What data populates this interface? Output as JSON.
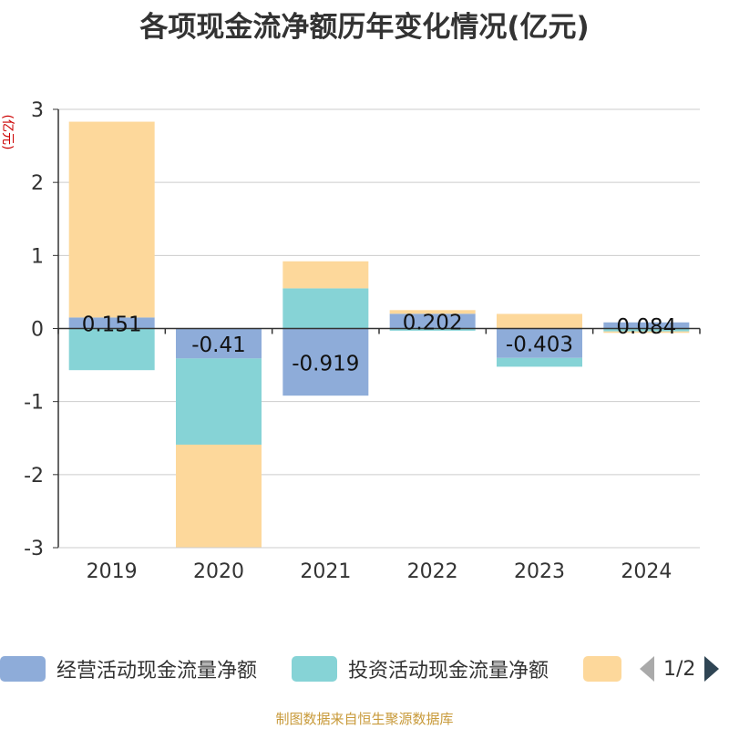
{
  "title": "各项现金流净额历年变化情况(亿元)",
  "source": "制图数据来自恒生聚源数据库",
  "pager": {
    "text": "1/2"
  },
  "colors": {
    "operating": "#8eacd9",
    "investing": "#86d3d6",
    "financing": "#fdd89b",
    "ylabel": "#cc0000",
    "axis": "#333333",
    "grid": "#cccccc"
  },
  "chart_data": {
    "type": "bar",
    "stacked": true,
    "title": "各项现金流净额历年变化情况(亿元)",
    "ylabel": "(亿元)",
    "xlabel": "",
    "categories": [
      "2019",
      "2020",
      "2021",
      "2022",
      "2023",
      "2024"
    ],
    "ylim": [
      -3,
      3
    ],
    "yticks": [
      3,
      2,
      1,
      0,
      -1,
      -2,
      -3
    ],
    "grid": true,
    "legend_position": "bottom",
    "series": [
      {
        "name": "经营活动现金流量净额",
        "color": "#8eacd9",
        "values": [
          0.151,
          -0.41,
          -0.919,
          0.202,
          -0.403,
          0.084
        ],
        "labels": [
          "0.151",
          "-0.41",
          "-0.919",
          "0.202",
          "-0.403",
          "0.084"
        ]
      },
      {
        "name": "投资活动现金流量净额",
        "color": "#86d3d6",
        "values": [
          -0.57,
          -1.18,
          0.55,
          -0.03,
          -0.12,
          -0.04
        ]
      },
      {
        "name": "",
        "color": "#fdd89b",
        "values": [
          2.68,
          -1.41,
          0.37,
          0.05,
          0.2,
          -0.02
        ]
      }
    ]
  }
}
